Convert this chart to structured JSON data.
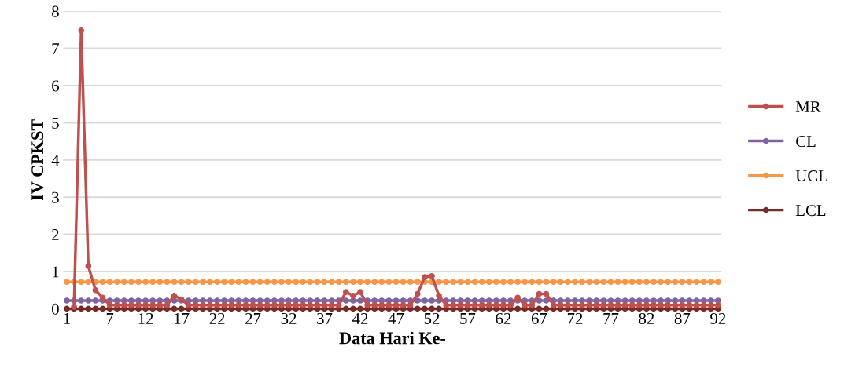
{
  "chart_data": {
    "type": "line",
    "xlabel": "Data Hari Ke-",
    "ylabel": "IV CPKST",
    "categories": [
      "1",
      null,
      null,
      null,
      null,
      null,
      "7",
      null,
      null,
      null,
      null,
      "12",
      null,
      null,
      null,
      null,
      "17",
      null,
      null,
      null,
      null,
      "22",
      null,
      null,
      null,
      null,
      "27",
      null,
      null,
      null,
      null,
      "32",
      null,
      null,
      null,
      null,
      "37",
      null,
      null,
      null,
      null,
      "42",
      null,
      null,
      null,
      null,
      "47",
      null,
      null,
      null,
      null,
      "52",
      null,
      null,
      null,
      null,
      "57",
      null,
      null,
      null,
      null,
      "62",
      null,
      null,
      null,
      null,
      "67",
      null,
      null,
      null,
      null,
      "72",
      null,
      null,
      null,
      null,
      "77",
      null,
      null,
      null,
      null,
      "82",
      null,
      null,
      null,
      null,
      "87",
      null,
      null,
      null,
      null,
      "92"
    ],
    "series": [
      {
        "name": "MR",
        "color": "#c0504d",
        "values": [
          null,
          0.05,
          7.48,
          1.15,
          0.5,
          0.3,
          0.1,
          0.1,
          0.1,
          0.1,
          0.1,
          0.1,
          0.1,
          0.1,
          0.1,
          0.35,
          0.25,
          0.1,
          0.1,
          0.1,
          0.1,
          0.1,
          0.1,
          0.1,
          0.1,
          0.1,
          0.1,
          0.1,
          0.1,
          0.1,
          0.1,
          0.1,
          0.1,
          0.1,
          0.1,
          0.1,
          0.1,
          0.1,
          0.1,
          0.45,
          0.35,
          0.45,
          0.1,
          0.1,
          0.1,
          0.1,
          0.1,
          0.1,
          0.1,
          0.4,
          0.85,
          0.88,
          0.35,
          0.1,
          0.1,
          0.1,
          0.1,
          0.1,
          0.1,
          0.1,
          0.1,
          0.1,
          0.1,
          0.3,
          0.1,
          0.1,
          0.4,
          0.4,
          0.1,
          0.1,
          0.1,
          0.1,
          0.1,
          0.1,
          0.1,
          0.1,
          0.1,
          0.1,
          0.1,
          0.1,
          0.1,
          0.1,
          0.1,
          0.1,
          0.1,
          0.1,
          0.1,
          0.1,
          0.1,
          0.1,
          0.1,
          0.1
        ]
      },
      {
        "name": "CL",
        "color": "#8064a2",
        "values": [
          0.22,
          0.22,
          0.22,
          0.22,
          0.22,
          0.22,
          0.22,
          0.22,
          0.22,
          0.22,
          0.22,
          0.22,
          0.22,
          0.22,
          0.22,
          0.22,
          0.22,
          0.22,
          0.22,
          0.22,
          0.22,
          0.22,
          0.22,
          0.22,
          0.22,
          0.22,
          0.22,
          0.22,
          0.22,
          0.22,
          0.22,
          0.22,
          0.22,
          0.22,
          0.22,
          0.22,
          0.22,
          0.22,
          0.22,
          0.22,
          0.22,
          0.22,
          0.22,
          0.22,
          0.22,
          0.22,
          0.22,
          0.22,
          0.22,
          0.22,
          0.22,
          0.22,
          0.22,
          0.22,
          0.22,
          0.22,
          0.22,
          0.22,
          0.22,
          0.22,
          0.22,
          0.22,
          0.22,
          0.22,
          0.22,
          0.22,
          0.22,
          0.22,
          0.22,
          0.22,
          0.22,
          0.22,
          0.22,
          0.22,
          0.22,
          0.22,
          0.22,
          0.22,
          0.22,
          0.22,
          0.22,
          0.22,
          0.22,
          0.22,
          0.22,
          0.22,
          0.22,
          0.22,
          0.22,
          0.22,
          0.22,
          0.22
        ]
      },
      {
        "name": "UCL",
        "color": "#f79646",
        "values": [
          0.72,
          0.72,
          0.72,
          0.72,
          0.72,
          0.72,
          0.72,
          0.72,
          0.72,
          0.72,
          0.72,
          0.72,
          0.72,
          0.72,
          0.72,
          0.72,
          0.72,
          0.72,
          0.72,
          0.72,
          0.72,
          0.72,
          0.72,
          0.72,
          0.72,
          0.72,
          0.72,
          0.72,
          0.72,
          0.72,
          0.72,
          0.72,
          0.72,
          0.72,
          0.72,
          0.72,
          0.72,
          0.72,
          0.72,
          0.72,
          0.72,
          0.72,
          0.72,
          0.72,
          0.72,
          0.72,
          0.72,
          0.72,
          0.72,
          0.72,
          0.72,
          0.72,
          0.72,
          0.72,
          0.72,
          0.72,
          0.72,
          0.72,
          0.72,
          0.72,
          0.72,
          0.72,
          0.72,
          0.72,
          0.72,
          0.72,
          0.72,
          0.72,
          0.72,
          0.72,
          0.72,
          0.72,
          0.72,
          0.72,
          0.72,
          0.72,
          0.72,
          0.72,
          0.72,
          0.72,
          0.72,
          0.72,
          0.72,
          0.72,
          0.72,
          0.72,
          0.72,
          0.72,
          0.72,
          0.72,
          0.72,
          0.72
        ]
      },
      {
        "name": "LCL",
        "color": "#772c2a",
        "values": [
          0,
          0,
          0,
          0,
          0,
          0,
          0,
          0,
          0,
          0,
          0,
          0,
          0,
          0,
          0,
          0,
          0,
          0,
          0,
          0,
          0,
          0,
          0,
          0,
          0,
          0,
          0,
          0,
          0,
          0,
          0,
          0,
          0,
          0,
          0,
          0,
          0,
          0,
          0,
          0,
          0,
          0,
          0,
          0,
          0,
          0,
          0,
          0,
          0,
          0,
          0,
          0,
          0,
          0,
          0,
          0,
          0,
          0,
          0,
          0,
          0,
          0,
          0,
          0,
          0,
          0,
          0,
          0,
          0,
          0,
          0,
          0,
          0,
          0,
          0,
          0,
          0,
          0,
          0,
          0,
          0,
          0,
          0,
          0,
          0,
          0,
          0,
          0,
          0,
          0,
          0,
          0
        ]
      }
    ],
    "ylim": [
      0,
      8
    ],
    "yticks": [
      0,
      1,
      2,
      3,
      4,
      5,
      6,
      7,
      8
    ],
    "grid": "y",
    "legend": "right",
    "marker": "circle",
    "line_style": "solid"
  }
}
